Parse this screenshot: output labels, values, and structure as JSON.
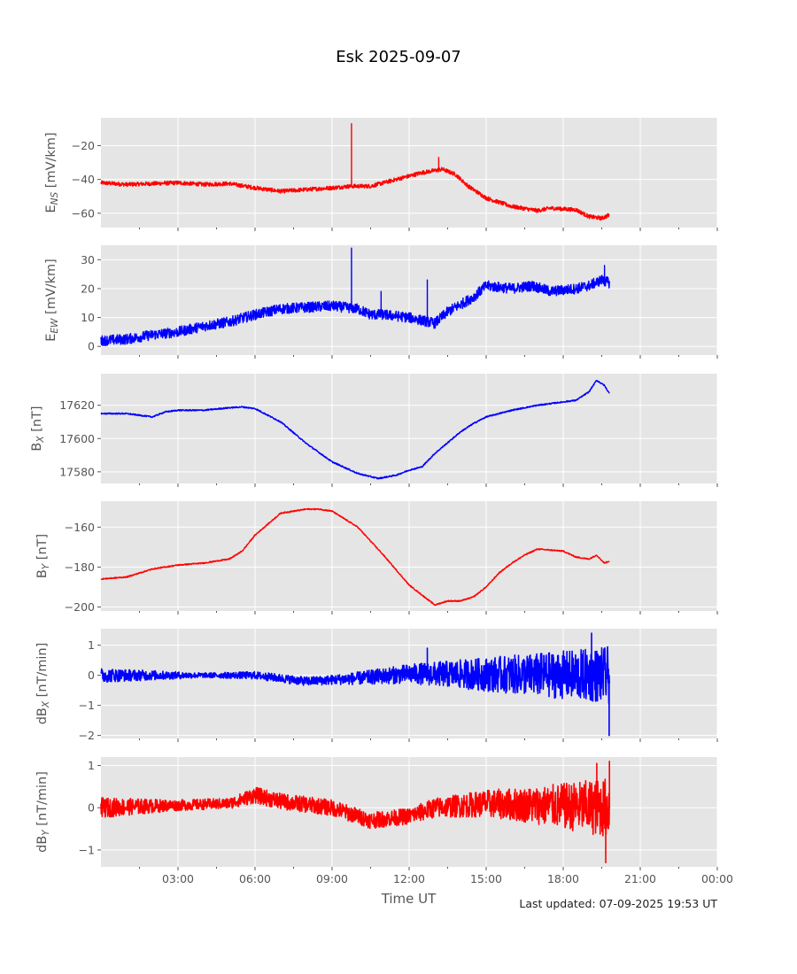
{
  "figure": {
    "title": "Esk 2025-09-07",
    "xlabel": "Time UT",
    "footer": "Last updated: 07-09-2025 19:53 UT"
  },
  "chart_data": {
    "type": "line",
    "x_unit": "hours UT",
    "xlim": [
      0,
      24
    ],
    "xticks": [
      3,
      6,
      9,
      12,
      15,
      18,
      21,
      24
    ],
    "xtick_labels": [
      "03:00",
      "06:00",
      "09:00",
      "12:00",
      "15:00",
      "18:00",
      "21:00",
      "00:00"
    ],
    "panels": [
      {
        "id": "ens",
        "ylabel_main": "E",
        "ylabel_sub": "NS",
        "ylabel_unit": " [mV/km]",
        "color": "#ff0000",
        "ylim": [
          -68.5,
          -3.5
        ],
        "yticks": [
          -60,
          -40,
          -20
        ],
        "ytick_labels": [
          "−60",
          "−40",
          "−20"
        ],
        "noise": 1.2,
        "series": [
          [
            0,
            -42
          ],
          [
            1,
            -43
          ],
          [
            2,
            -42.5
          ],
          [
            3,
            -42
          ],
          [
            4,
            -43
          ],
          [
            5,
            -42.5
          ],
          [
            6,
            -45
          ],
          [
            7,
            -47
          ],
          [
            8,
            -46
          ],
          [
            9,
            -45
          ],
          [
            9.7,
            -44
          ],
          [
            10.5,
            -44
          ],
          [
            11.5,
            -40
          ],
          [
            12.5,
            -36
          ],
          [
            13.3,
            -34
          ],
          [
            13.8,
            -37
          ],
          [
            14.3,
            -44
          ],
          [
            15,
            -51
          ],
          [
            16,
            -56
          ],
          [
            17,
            -58.5
          ],
          [
            17.5,
            -57
          ],
          [
            18.5,
            -58
          ],
          [
            19,
            -62
          ],
          [
            19.5,
            -63
          ],
          [
            19.8,
            -61
          ]
        ],
        "spikes": [
          [
            9.75,
            -7
          ],
          [
            13.15,
            -27
          ]
        ]
      },
      {
        "id": "eew",
        "ylabel_main": "E",
        "ylabel_sub": "EW",
        "ylabel_unit": " [mV/km]",
        "color": "#0000ff",
        "ylim": [
          -3,
          35
        ],
        "yticks": [
          0,
          10,
          20,
          30
        ],
        "ytick_labels": [
          "0",
          "10",
          "20",
          "30"
        ],
        "noise": 1.8,
        "series": [
          [
            0,
            2
          ],
          [
            1,
            2.5
          ],
          [
            2,
            4
          ],
          [
            3,
            5
          ],
          [
            4,
            7
          ],
          [
            5,
            8.5
          ],
          [
            6,
            11
          ],
          [
            7,
            13
          ],
          [
            8,
            13.5
          ],
          [
            9,
            14
          ],
          [
            10,
            13
          ],
          [
            10.5,
            11
          ],
          [
            11,
            11
          ],
          [
            12,
            10
          ],
          [
            12.5,
            9
          ],
          [
            13,
            8
          ],
          [
            13.5,
            12
          ],
          [
            14.5,
            17
          ],
          [
            15,
            21
          ],
          [
            16,
            20
          ],
          [
            16.8,
            21
          ],
          [
            17.5,
            19
          ],
          [
            18.5,
            20
          ],
          [
            19,
            21
          ],
          [
            19.5,
            23
          ],
          [
            19.8,
            22
          ]
        ],
        "spikes": [
          [
            9.75,
            34
          ],
          [
            10.9,
            19
          ],
          [
            12.7,
            23
          ],
          [
            19.6,
            28
          ]
        ]
      },
      {
        "id": "bx",
        "ylabel_main": "B",
        "ylabel_sub": "X",
        "ylabel_unit": " [nT]",
        "color": "#0000ff",
        "ylim": [
          17573,
          17639
        ],
        "yticks": [
          17580,
          17600,
          17620
        ],
        "ytick_labels": [
          "17580",
          "17600",
          "17620"
        ],
        "noise": 0.4,
        "series": [
          [
            0,
            17615
          ],
          [
            1,
            17615
          ],
          [
            2,
            17613
          ],
          [
            2.5,
            17616
          ],
          [
            3,
            17617
          ],
          [
            4,
            17617
          ],
          [
            5,
            17618.5
          ],
          [
            5.5,
            17619
          ],
          [
            6,
            17618
          ],
          [
            7,
            17610
          ],
          [
            8,
            17597
          ],
          [
            9,
            17586
          ],
          [
            10,
            17579
          ],
          [
            10.8,
            17576
          ],
          [
            11.5,
            17578
          ],
          [
            12,
            17581
          ],
          [
            12.5,
            17583
          ],
          [
            13,
            17591
          ],
          [
            14,
            17604
          ],
          [
            14.5,
            17609
          ],
          [
            15,
            17613
          ],
          [
            16,
            17617
          ],
          [
            17,
            17620
          ],
          [
            18,
            17622
          ],
          [
            18.5,
            17623
          ],
          [
            19,
            17628
          ],
          [
            19.3,
            17635
          ],
          [
            19.6,
            17632
          ],
          [
            19.8,
            17627
          ]
        ],
        "spikes": []
      },
      {
        "id": "by",
        "ylabel_main": "B",
        "ylabel_sub": "Y",
        "ylabel_unit": " [nT]",
        "color": "#ff0000",
        "ylim": [
          -202,
          -147
        ],
        "yticks": [
          -200,
          -180,
          -160
        ],
        "ytick_labels": [
          "−200",
          "−180",
          "−160"
        ],
        "noise": 0.3,
        "series": [
          [
            0,
            -186
          ],
          [
            1,
            -185
          ],
          [
            2,
            -181
          ],
          [
            3,
            -179
          ],
          [
            4,
            -178
          ],
          [
            5,
            -176
          ],
          [
            5.5,
            -172
          ],
          [
            6,
            -164
          ],
          [
            7,
            -153
          ],
          [
            8,
            -151
          ],
          [
            8.5,
            -151
          ],
          [
            9,
            -152
          ],
          [
            10,
            -160
          ],
          [
            11,
            -174
          ],
          [
            12,
            -189
          ],
          [
            13,
            -199
          ],
          [
            13.5,
            -197
          ],
          [
            14,
            -197
          ],
          [
            14.5,
            -195
          ],
          [
            15,
            -190
          ],
          [
            15.5,
            -183
          ],
          [
            16,
            -178
          ],
          [
            16.5,
            -174
          ],
          [
            17,
            -171
          ],
          [
            18,
            -172
          ],
          [
            18.5,
            -175
          ],
          [
            19,
            -176
          ],
          [
            19.3,
            -174
          ],
          [
            19.6,
            -178
          ],
          [
            19.8,
            -177
          ]
        ],
        "spikes": []
      },
      {
        "id": "dbx",
        "ylabel_main": "dB",
        "ylabel_sub": "X",
        "ylabel_unit": " [nT/min]",
        "color": "#0000ff",
        "ylim": [
          -2.1,
          1.55
        ],
        "yticks": [
          -2,
          -1,
          0,
          1
        ],
        "ytick_labels": [
          "−2",
          "−1",
          "0",
          "1"
        ],
        "noise_profile": [
          [
            0,
            0.15
          ],
          [
            2,
            0.1
          ],
          [
            4,
            0.05
          ],
          [
            6,
            0.08
          ],
          [
            9,
            0.1
          ],
          [
            12,
            0.2
          ],
          [
            13,
            0.25
          ],
          [
            15,
            0.35
          ],
          [
            17,
            0.45
          ],
          [
            19,
            0.55
          ],
          [
            19.8,
            0.6
          ]
        ],
        "series": [
          [
            0,
            0
          ],
          [
            6,
            0
          ],
          [
            8,
            -0.2
          ],
          [
            10,
            -0.1
          ],
          [
            12,
            0.05
          ],
          [
            19.8,
            0
          ]
        ],
        "spikes": [
          [
            19.1,
            1.4
          ],
          [
            19.78,
            -2.0
          ],
          [
            12.7,
            0.9
          ]
        ]
      },
      {
        "id": "dby",
        "ylabel_main": "dB",
        "ylabel_sub": "Y",
        "ylabel_unit": " [nT/min]",
        "color": "#ff0000",
        "ylim": [
          -1.4,
          1.2
        ],
        "yticks": [
          -1,
          0,
          1
        ],
        "ytick_labels": [
          "−1",
          "0",
          "1"
        ],
        "noise_profile": [
          [
            0,
            0.15
          ],
          [
            3,
            0.08
          ],
          [
            5,
            0.08
          ],
          [
            6,
            0.12
          ],
          [
            9,
            0.12
          ],
          [
            12,
            0.12
          ],
          [
            15,
            0.2
          ],
          [
            17,
            0.28
          ],
          [
            19,
            0.4
          ],
          [
            19.8,
            0.45
          ]
        ],
        "series": [
          [
            0,
            0
          ],
          [
            5,
            0.1
          ],
          [
            6,
            0.3
          ],
          [
            7,
            0.15
          ],
          [
            9,
            0
          ],
          [
            10.5,
            -0.3
          ],
          [
            12,
            -0.2
          ],
          [
            13,
            0
          ],
          [
            15,
            0.1
          ],
          [
            19.8,
            0
          ]
        ],
        "spikes": [
          [
            19.65,
            -1.3
          ],
          [
            19.8,
            1.1
          ],
          [
            19.3,
            1.05
          ]
        ]
      }
    ]
  }
}
